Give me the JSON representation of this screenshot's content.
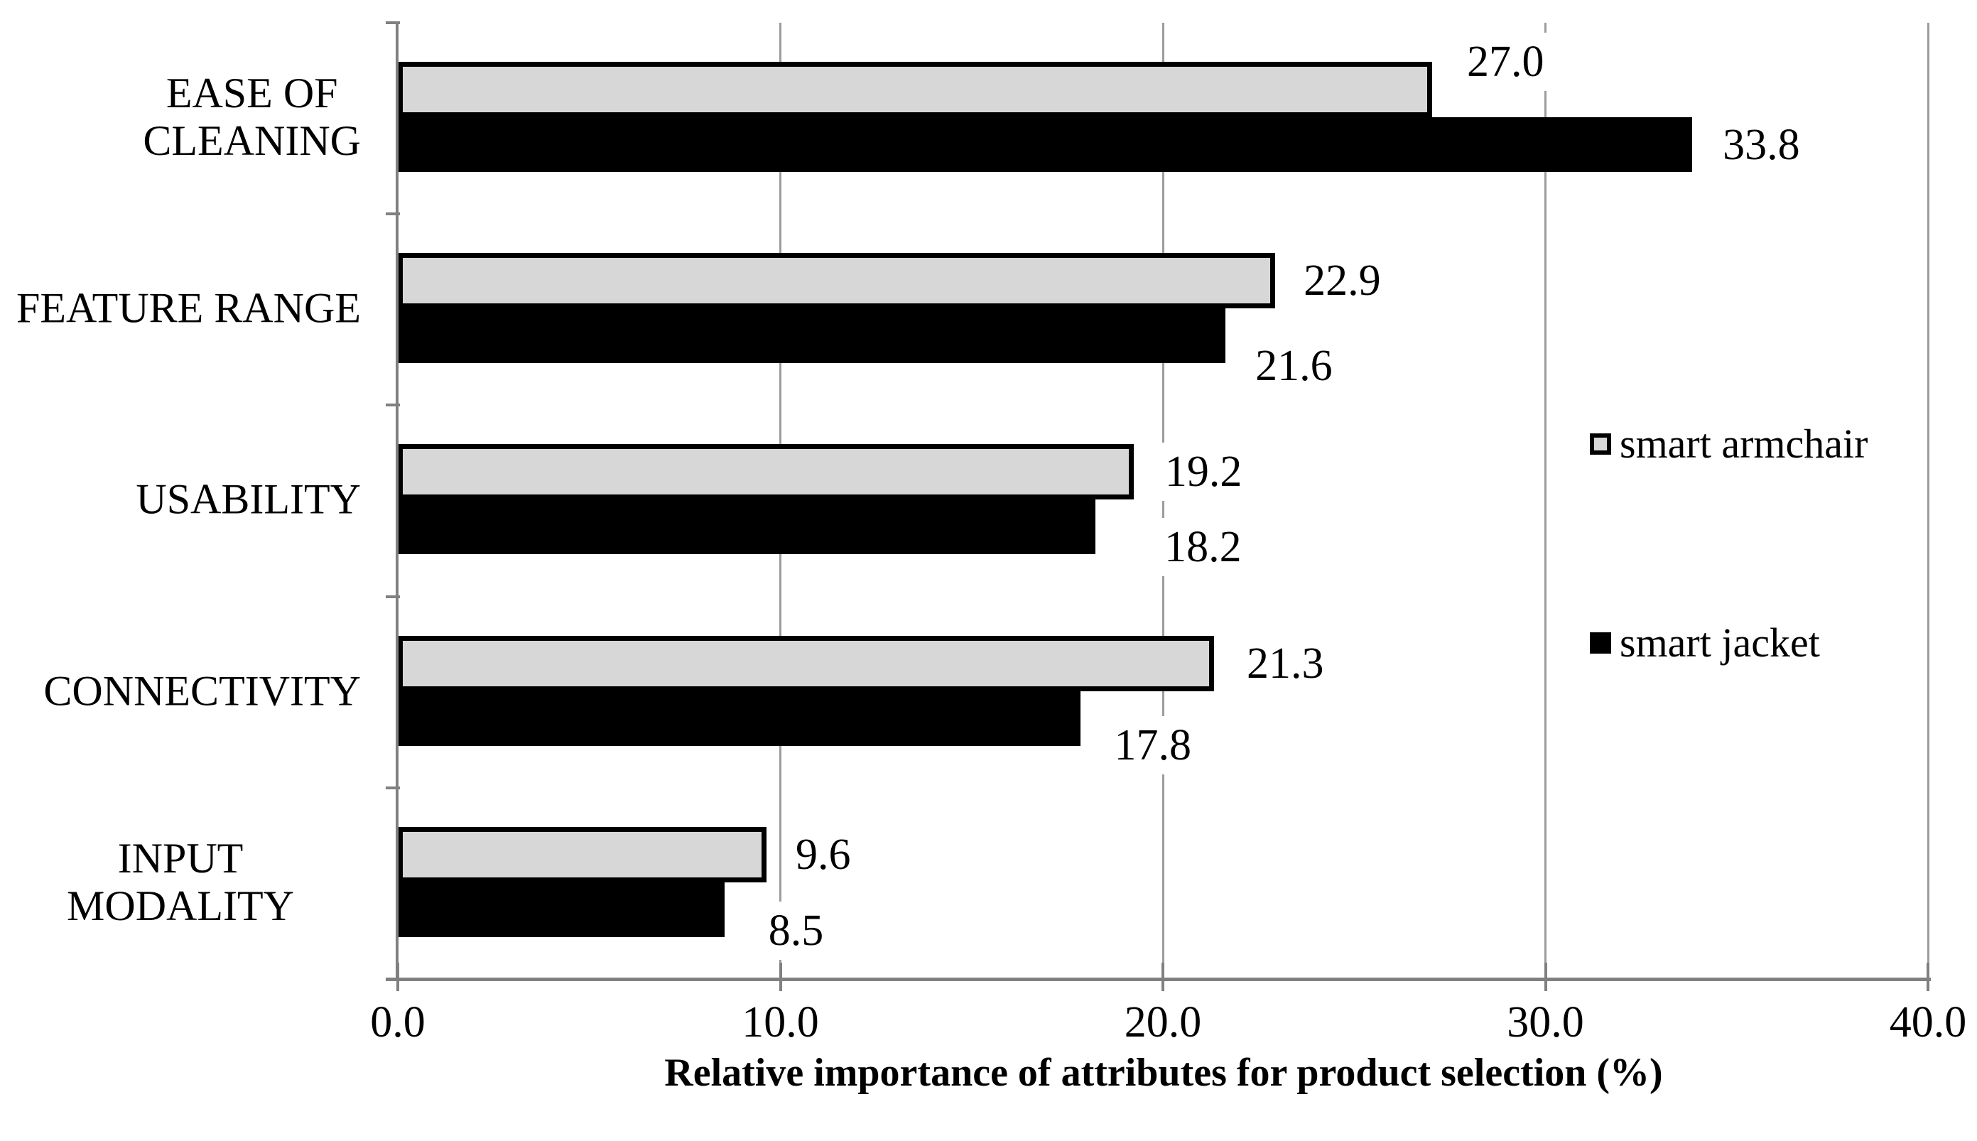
{
  "chart_data": {
    "type": "bar",
    "orientation": "horizontal",
    "title": "",
    "xlabel": "Relative importance of attributes for product selection (%)",
    "ylabel": "",
    "categories": [
      [
        "EASE OF",
        "CLEANING"
      ],
      [
        "FEATURE RANGE"
      ],
      [
        "USABILITY"
      ],
      [
        "CONNECTIVITY"
      ],
      [
        "INPUT MODALITY"
      ]
    ],
    "series": [
      {
        "name": "smart armchair",
        "color": "#d7d7d7",
        "border_color": "#000000",
        "values": [
          27.0,
          22.9,
          19.2,
          21.3,
          9.6
        ]
      },
      {
        "name": "smart jacket",
        "color": "#000000",
        "border_color": "#000000",
        "values": [
          33.8,
          21.6,
          18.2,
          17.8,
          8.5
        ]
      }
    ],
    "value_label_decimals": 1,
    "xlim": [
      0,
      40
    ],
    "xticks": [
      "0.0",
      "10.0",
      "20.0",
      "30.0",
      "40.0"
    ],
    "grid": "vertical",
    "legend_position": "right-middle",
    "axis_color": "#808080",
    "gridline_color": "#9c9c9c",
    "text_color": "#000000",
    "background": "#ffffff"
  }
}
